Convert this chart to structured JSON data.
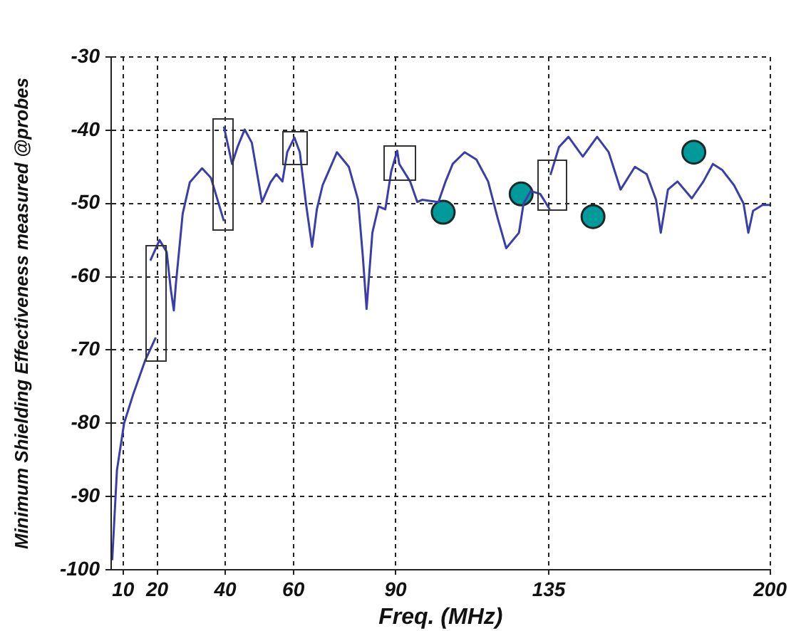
{
  "chart_data": {
    "type": "line",
    "xlabel": "Freq. (MHz)",
    "ylabel": "Minimum Shielding Effectiveness measured @probes",
    "xlim": [
      6.5,
      200
    ],
    "xticks": [
      10,
      20,
      40,
      60,
      90,
      135,
      200
    ],
    "ylim": [
      -100,
      -30
    ],
    "yticks": [
      -100,
      -90,
      -80,
      -70,
      -60,
      -50,
      -40,
      -30
    ],
    "grid": true,
    "legend": false,
    "series": [
      {
        "color": "#3a3fa8",
        "marker": "none",
        "line_style": "solid",
        "x": [
          6.8,
          8.2,
          10.3,
          13,
          16.5,
          19.6
        ],
        "values": [
          -98.7,
          -86.4,
          -80,
          -76,
          -71.4,
          -68.3
        ]
      },
      {
        "color": "#3a3fa8",
        "marker": "none",
        "line_style": "solid",
        "x": [
          18,
          20.7,
          22.8,
          24,
          24.9,
          25.5,
          27.5,
          29.6,
          33.2,
          35.8,
          39.6
        ],
        "values": [
          -57.8,
          -55,
          -56.6,
          -61.7,
          -64.6,
          -61,
          -51.4,
          -47.1,
          -45.2,
          -46.5,
          -52.4
        ]
      },
      {
        "color": "#3a3fa8",
        "marker": "none",
        "line_style": "solid",
        "x": [
          39.6,
          42,
          43.6,
          45.7,
          47.8,
          50.8,
          53.3,
          55,
          56.8,
          58.2,
          60.3,
          61.9,
          63.7,
          65.5,
          66.9,
          68.6,
          72.8,
          76.3,
          79,
          80.4,
          81.5,
          83.2,
          85,
          87,
          88.75,
          90.5,
          91.1,
          94.3,
          96.4,
          97.8,
          102.6,
          104.7,
          106.8,
          110.3,
          113.75,
          117.2,
          120,
          122.5,
          126.25,
          127.6,
          129.7,
          132.5,
          135.3
        ],
        "values": [
          -39.5,
          -44.6,
          -42.3,
          -39.9,
          -41.7,
          -49.8,
          -47.1,
          -46,
          -47,
          -43,
          -41,
          -43,
          -50,
          -55.9,
          -50.8,
          -47.5,
          -43,
          -45,
          -49.5,
          -57.2,
          -64.4,
          -54,
          -50.4,
          -50.8,
          -45.6,
          -42.8,
          -44.6,
          -47,
          -49.8,
          -49.5,
          -49.8,
          -47,
          -44.6,
          -43,
          -44,
          -47,
          -52,
          -56.1,
          -54,
          -50,
          -48.3,
          -48.7,
          -50.8
        ]
      },
      {
        "color": "#3a3fa8",
        "marker": "none",
        "line_style": "solid",
        "x": [
          135.5,
          138,
          140.8,
          145,
          149.2,
          152.6,
          156.1,
          160.3,
          163.75,
          166.5,
          167.9,
          170,
          172.8,
          177,
          180.4,
          183.2,
          185.9,
          189.4,
          192.2,
          193.6,
          195,
          197.8,
          199.9
        ],
        "values": [
          -46.1,
          -42.3,
          -40.9,
          -43.6,
          -40.9,
          -43,
          -48.1,
          -45,
          -46,
          -49.5,
          -54,
          -48.1,
          -47,
          -49.3,
          -47,
          -44.6,
          -45.4,
          -47.5,
          -50,
          -54,
          -51,
          -50.2,
          -50.2
        ]
      },
      {
        "type": "scatter",
        "color": "#009a9a",
        "marker": "circle",
        "x": [
          104,
          126.9,
          148,
          177.6
        ],
        "values": [
          -51.2,
          -48.7,
          -51.8,
          -43
        ]
      }
    ]
  }
}
